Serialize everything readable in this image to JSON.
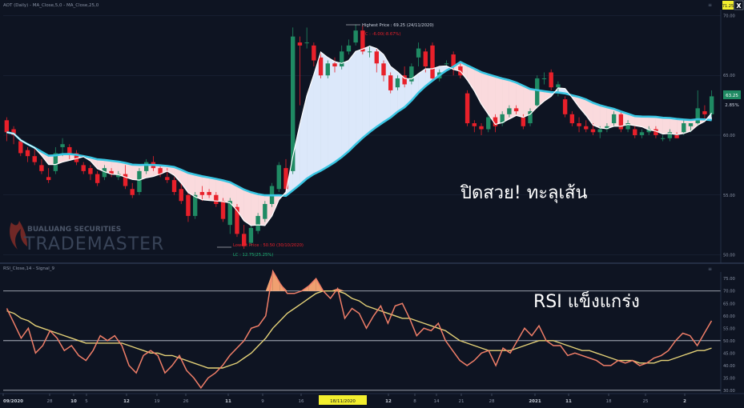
{
  "header": {
    "price_pane_label": "AOT (Daily) - MA_Close,5,0 - MA_Close,25,0",
    "rsi_pane_label": "RSI_Close,14 - Signal_9",
    "close_icon_glyph": "X",
    "corner_box_value": "71.25"
  },
  "annotations": {
    "highest_price": "Highest Price : 69.25 (24/11/2020)",
    "highest_change": "HC : -6.00(-8.67%)",
    "lowest_price": "Lowest Price : 50.50 (30/10/2020)",
    "lowest_change": "LC : 12.75(25.25%)",
    "price_headline": "ปิดสวย! ทะลุเส้น",
    "rsi_headline": "RSI แข็งแกร่ง",
    "last_price": "63.25",
    "last_change": "2.85%",
    "watermark_top": "BUALUANG SECURITIES",
    "watermark_main": "TRADEMASTER"
  },
  "colors": {
    "background": "#0e1422",
    "grid": "#1f2a3e",
    "bull": "#1f8a63",
    "bear": "#e8202a",
    "ma_fast": "#ffffff",
    "ma_slow": "#39c6e3",
    "fill_up": "#dce8fa",
    "fill_down": "#fadadd",
    "rsi": "#f07e68",
    "signal": "#e5d278",
    "overbought_fill": "#f0a070",
    "date_highlight": "#f2ee2e"
  },
  "chart_data": [
    {
      "type": "candlestick",
      "title": "AOT (Daily) - MA_Close,5,0 - MA_Close,25,0",
      "ylim": [
        49.5,
        70.5
      ],
      "y_ticks": [
        50.0,
        55.0,
        60.0,
        65.0,
        70.0
      ],
      "series_names": [
        "MA_Close,5,0",
        "MA_Close,25,0"
      ],
      "ohlc": [
        [
          61.25,
          61.5,
          59.5,
          60.25
        ],
        [
          60.5,
          60.75,
          59.25,
          60.0
        ],
        [
          59.5,
          59.75,
          58.25,
          58.5
        ],
        [
          58.75,
          59.0,
          57.75,
          58.25
        ],
        [
          58.25,
          59.0,
          57.5,
          57.75
        ],
        [
          57.5,
          58.0,
          56.75,
          57.0
        ],
        [
          56.5,
          57.25,
          56.0,
          56.25
        ],
        [
          57.0,
          59.0,
          56.75,
          58.5
        ],
        [
          59.0,
          59.75,
          58.25,
          59.25
        ],
        [
          59.0,
          59.25,
          58.0,
          58.5
        ],
        [
          58.5,
          58.75,
          57.5,
          57.75
        ],
        [
          57.5,
          57.75,
          56.75,
          57.0
        ],
        [
          57.25,
          57.5,
          56.25,
          56.75
        ],
        [
          56.75,
          57.0,
          55.75,
          56.0
        ],
        [
          56.5,
          57.5,
          56.25,
          57.25
        ],
        [
          57.0,
          57.25,
          56.5,
          56.75
        ],
        [
          56.5,
          57.0,
          56.25,
          56.75
        ],
        [
          56.75,
          57.5,
          55.5,
          55.75
        ],
        [
          55.5,
          56.0,
          54.75,
          55.0
        ],
        [
          55.25,
          57.25,
          55.0,
          57.0
        ],
        [
          57.0,
          58.0,
          56.75,
          57.75
        ],
        [
          57.75,
          58.25,
          57.0,
          57.25
        ],
        [
          57.25,
          57.5,
          56.5,
          56.75
        ],
        [
          56.5,
          57.25,
          56.0,
          56.25
        ],
        [
          56.25,
          56.5,
          55.0,
          55.25
        ],
        [
          55.5,
          56.0,
          54.25,
          54.5
        ],
        [
          55.0,
          55.25,
          52.75,
          53.25
        ],
        [
          53.25,
          55.25,
          53.0,
          55.0
        ],
        [
          55.25,
          55.75,
          54.5,
          55.0
        ],
        [
          55.25,
          55.5,
          54.75,
          55.0
        ],
        [
          55.0,
          55.25,
          54.0,
          54.25
        ],
        [
          54.5,
          54.75,
          52.75,
          53.0
        ],
        [
          52.5,
          54.75,
          51.75,
          54.5
        ],
        [
          54.0,
          54.25,
          51.5,
          51.75
        ],
        [
          51.75,
          52.5,
          50.5,
          50.75
        ],
        [
          51.0,
          52.5,
          50.75,
          52.25
        ],
        [
          52.0,
          53.5,
          51.75,
          53.25
        ],
        [
          53.0,
          54.5,
          52.75,
          54.25
        ],
        [
          54.25,
          56.0,
          54.0,
          55.75
        ],
        [
          55.5,
          57.75,
          55.25,
          57.5
        ],
        [
          57.25,
          58.0,
          55.25,
          55.5
        ],
        [
          57.0,
          69.0,
          56.75,
          68.25
        ],
        [
          67.75,
          68.25,
          62.5,
          67.5
        ],
        [
          67.75,
          69.0,
          67.25,
          67.75
        ],
        [
          67.5,
          67.75,
          65.75,
          66.25
        ],
        [
          66.5,
          67.0,
          64.75,
          65.0
        ],
        [
          65.0,
          66.25,
          64.75,
          66.0
        ],
        [
          66.0,
          66.5,
          65.25,
          65.75
        ],
        [
          65.75,
          67.5,
          65.5,
          67.0
        ],
        [
          67.0,
          68.0,
          66.75,
          67.5
        ],
        [
          67.75,
          69.25,
          67.5,
          68.75
        ],
        [
          68.75,
          69.25,
          66.75,
          67.0
        ],
        [
          67.0,
          67.5,
          66.5,
          67.0
        ],
        [
          67.0,
          67.25,
          65.25,
          66.0
        ],
        [
          66.0,
          66.25,
          64.5,
          65.0
        ],
        [
          65.0,
          65.25,
          63.5,
          63.75
        ],
        [
          64.0,
          65.0,
          63.75,
          64.75
        ],
        [
          65.0,
          65.75,
          64.0,
          64.25
        ],
        [
          64.5,
          66.0,
          64.25,
          65.75
        ],
        [
          66.5,
          67.75,
          65.75,
          67.25
        ],
        [
          67.0,
          67.25,
          65.25,
          65.75
        ],
        [
          67.5,
          67.75,
          64.5,
          64.75
        ],
        [
          64.75,
          65.5,
          64.5,
          65.25
        ],
        [
          66.0,
          66.25,
          65.75,
          66.0
        ],
        [
          66.75,
          67.0,
          65.0,
          65.75
        ],
        [
          65.75,
          66.0,
          64.75,
          65.0
        ],
        [
          63.5,
          63.75,
          60.75,
          61.0
        ],
        [
          61.0,
          61.25,
          60.25,
          60.75
        ],
        [
          60.75,
          61.0,
          60.0,
          60.5
        ],
        [
          60.5,
          61.75,
          60.25,
          61.5
        ],
        [
          61.5,
          61.75,
          60.25,
          60.75
        ],
        [
          61.0,
          62.0,
          60.75,
          61.75
        ],
        [
          61.75,
          62.5,
          61.5,
          62.25
        ],
        [
          62.25,
          62.5,
          61.75,
          62.0
        ],
        [
          61.5,
          61.75,
          60.5,
          60.75
        ],
        [
          61.0,
          62.25,
          60.75,
          62.0
        ],
        [
          62.5,
          65.0,
          62.25,
          64.75
        ],
        [
          64.75,
          65.25,
          64.25,
          64.75
        ],
        [
          65.25,
          65.5,
          63.75,
          64.0
        ],
        [
          64.0,
          64.5,
          63.25,
          64.25
        ],
        [
          63.0,
          63.25,
          61.5,
          61.75
        ],
        [
          61.75,
          62.0,
          60.75,
          61.0
        ],
        [
          61.0,
          61.5,
          60.25,
          60.75
        ],
        [
          60.75,
          61.25,
          60.25,
          60.5
        ],
        [
          60.5,
          61.0,
          60.0,
          60.25
        ],
        [
          60.25,
          60.75,
          59.75,
          60.5
        ],
        [
          60.5,
          61.0,
          60.25,
          60.75
        ],
        [
          61.0,
          62.0,
          60.75,
          61.75
        ],
        [
          61.75,
          62.0,
          60.25,
          60.5
        ],
        [
          60.5,
          61.25,
          60.25,
          61.0
        ],
        [
          60.5,
          60.75,
          59.75,
          60.0
        ],
        [
          60.0,
          60.5,
          59.75,
          60.25
        ],
        [
          60.25,
          60.75,
          60.0,
          60.5
        ],
        [
          60.5,
          60.75,
          59.75,
          60.0
        ],
        [
          59.75,
          60.0,
          59.5,
          59.75
        ],
        [
          59.75,
          60.5,
          59.5,
          60.25
        ],
        [
          60.0,
          60.25,
          59.75,
          59.75
        ],
        [
          60.25,
          61.25,
          60.0,
          61.0
        ],
        [
          60.75,
          61.0,
          60.25,
          61.0
        ],
        [
          61.0,
          63.75,
          60.75,
          62.25
        ],
        [
          62.0,
          62.5,
          61.25,
          61.75
        ],
        [
          61.75,
          63.75,
          61.5,
          63.25
        ]
      ]
    },
    {
      "type": "line",
      "title": "RSI_Close,14 - Signal_9",
      "ylim": [
        29,
        77
      ],
      "y_ticks": [
        30,
        35,
        40,
        45,
        50,
        55,
        60,
        65,
        70,
        75
      ],
      "reference_lines": [
        70,
        50,
        30
      ],
      "series": [
        {
          "name": "RSI_Close,14",
          "values": [
            63,
            57,
            51,
            55,
            45,
            48,
            54,
            51,
            46,
            48,
            44,
            42,
            46,
            52,
            50,
            52,
            48,
            40,
            37,
            44,
            46,
            44,
            37,
            40,
            44,
            38,
            35,
            31,
            35,
            37,
            40,
            44,
            47,
            50,
            55,
            56,
            60,
            78,
            73,
            69,
            69,
            70,
            72,
            75,
            70,
            67,
            71,
            59,
            63,
            61,
            55,
            60,
            64,
            57,
            64,
            65,
            59,
            52,
            55,
            54,
            57,
            50,
            46,
            42,
            40,
            42,
            45,
            46,
            40,
            47,
            45,
            50,
            55,
            52,
            56,
            50,
            48,
            48,
            44,
            45,
            44,
            43,
            42,
            40,
            40,
            42,
            41,
            42,
            40,
            41,
            43,
            44,
            46,
            50,
            53,
            52,
            48,
            53,
            58
          ]
        },
        {
          "name": "Signal_9",
          "values": [
            62,
            61,
            59,
            58,
            56,
            55,
            54,
            53,
            52,
            51,
            50,
            49,
            49,
            49,
            49,
            49,
            49,
            48,
            47,
            46,
            45,
            45,
            44,
            44,
            43,
            42,
            41,
            40,
            39,
            39,
            39,
            40,
            41,
            43,
            45,
            48,
            51,
            55,
            58,
            61,
            63,
            65,
            67,
            69,
            70,
            70,
            70,
            69,
            67,
            66,
            64,
            63,
            62,
            61,
            60,
            59,
            59,
            58,
            57,
            56,
            55,
            54,
            52,
            50,
            49,
            48,
            47,
            46,
            46,
            46,
            46,
            47,
            48,
            49,
            50,
            50,
            50,
            49,
            48,
            47,
            46,
            46,
            45,
            44,
            43,
            42,
            42,
            42,
            41,
            41,
            41,
            42,
            42,
            43,
            44,
            45,
            46,
            46,
            47
          ]
        }
      ]
    }
  ],
  "x_axis": {
    "tick_labels": [
      "09/2020",
      "28",
      "10",
      "5",
      "12",
      "19",
      "26",
      "11",
      "9",
      "16",
      "18/11/2020",
      "12",
      "8",
      "14",
      "21",
      "28",
      "2021",
      "11",
      "18",
      "25",
      "2"
    ]
  },
  "toolbar": {
    "pane_collapse_glyph_top": "≡",
    "pane_collapse_glyph_bottom": "≡"
  }
}
